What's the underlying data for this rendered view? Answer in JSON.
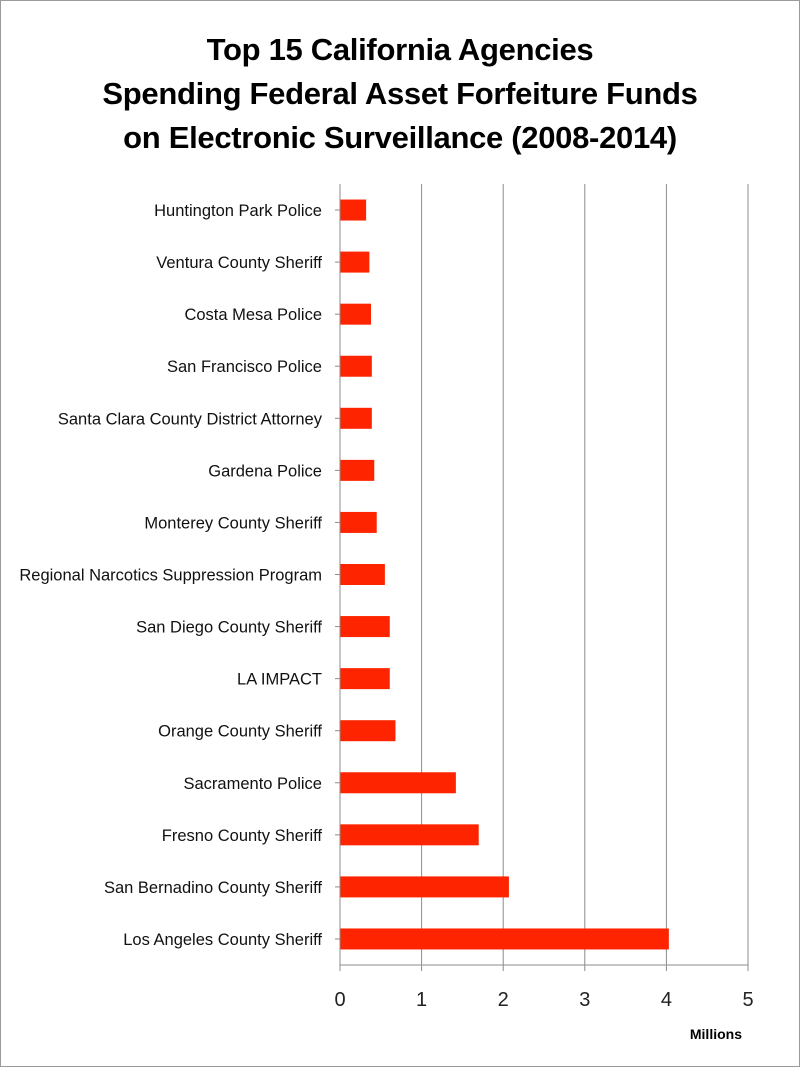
{
  "chart_data": {
    "type": "bar",
    "orientation": "horizontal",
    "title_lines": [
      "Top 15 California Agencies",
      "Spending Federal Asset Forfeiture Funds",
      "on Electronic Surveillance (2008-2014)"
    ],
    "xlabel": "Millions",
    "xlim": [
      0,
      5
    ],
    "xticks": [
      "0",
      "1",
      "2",
      "3",
      "4",
      "5"
    ],
    "grid": true,
    "bar_color": "#ff2400",
    "categories": [
      "Huntington Park Police",
      "Ventura County Sheriff",
      "Costa Mesa Police",
      "San Francisco Police",
      "Santa Clara County District Attorney",
      "Gardena Police",
      "Monterey County Sheriff",
      "Regional Narcotics Suppression Program",
      "San Diego County Sheriff",
      "LA IMPACT",
      "Orange County Sheriff",
      "Sacramento Police",
      "Fresno County Sheriff",
      "San Bernadino County Sheriff",
      "Los Angeles County Sheriff"
    ],
    "values": [
      0.32,
      0.36,
      0.38,
      0.39,
      0.39,
      0.42,
      0.45,
      0.55,
      0.61,
      0.61,
      0.68,
      1.42,
      1.7,
      2.07,
      4.03
    ]
  }
}
